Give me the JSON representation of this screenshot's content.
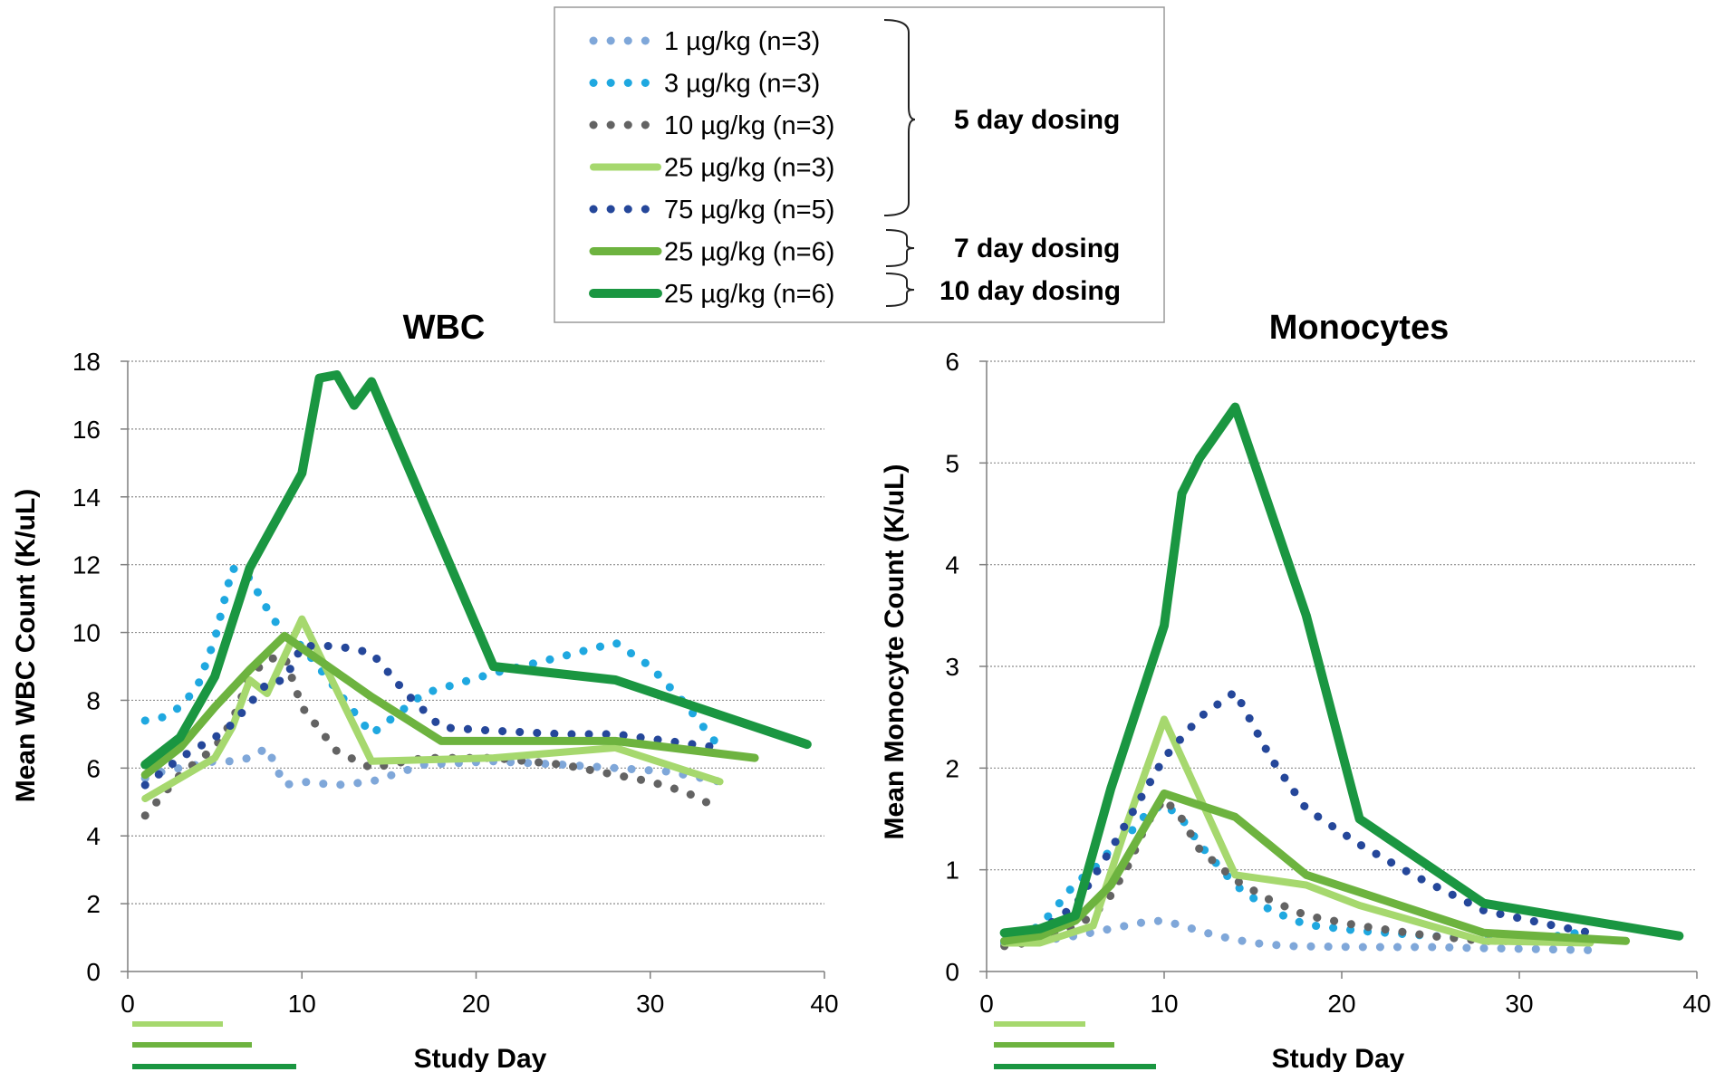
{
  "legend": {
    "entries": [
      {
        "label": "1 µg/kg (n=3)",
        "color": "#7fa7d9",
        "style": "dotted"
      },
      {
        "label": "3 µg/kg (n=3)",
        "color": "#1fa8e0",
        "style": "dotted"
      },
      {
        "label": "10 µg/kg (n=3)",
        "color": "#636363",
        "style": "dotted"
      },
      {
        "label": "25 µg/kg (n=3)",
        "color": "#a6d86e",
        "style": "solid-thin"
      },
      {
        "label": "75 µg/kg (n=5)",
        "color": "#25479a",
        "style": "dotted"
      },
      {
        "label": "25 µg/kg (n=6)",
        "color": "#6db33f",
        "style": "solid-medium"
      },
      {
        "label": "25 µg/kg (n=6)",
        "color": "#1a9641",
        "style": "solid-thick"
      }
    ],
    "groups": [
      "5 day dosing",
      "7 day dosing",
      "10 day dosing"
    ]
  },
  "chart_data": [
    {
      "type": "line",
      "title": "WBC",
      "xlabel": "Study Day",
      "ylabel": "Mean WBC Count (K/uL)",
      "xlim": [
        0,
        40
      ],
      "ylim": [
        0,
        18
      ],
      "xticks": [
        "0",
        "10",
        "20",
        "30",
        "40"
      ],
      "yticks": [
        "0",
        "2",
        "4",
        "6",
        "8",
        "10",
        "12",
        "14",
        "16",
        "18"
      ],
      "grid": true,
      "series": [
        {
          "name": "1 µg/kg (n=3)",
          "x": [
            1,
            2,
            3,
            4,
            5,
            6,
            7,
            8,
            9,
            10,
            12,
            14,
            17,
            21,
            25,
            28,
            31,
            34
          ],
          "y": [
            5.7,
            5.9,
            6.0,
            6.1,
            6.2,
            6.2,
            6.3,
            6.6,
            5.5,
            5.6,
            5.5,
            5.6,
            6.1,
            6.2,
            6.1,
            6.0,
            5.9,
            5.6
          ]
        },
        {
          "name": "3 µg/kg (n=3)",
          "x": [
            1,
            2,
            3,
            4,
            5,
            6,
            7,
            8,
            9,
            10,
            12,
            14,
            17,
            21,
            25,
            28,
            30,
            32,
            34
          ],
          "y": [
            7.4,
            7.5,
            7.8,
            8.4,
            9.8,
            11.9,
            11.6,
            10.7,
            9.9,
            9.6,
            8.3,
            7.0,
            8.2,
            8.8,
            9.3,
            9.7,
            9.0,
            7.9,
            6.6
          ]
        },
        {
          "name": "10 µg/kg (n=3)",
          "x": [
            1,
            2,
            3,
            4,
            5,
            6,
            7,
            8,
            9,
            10,
            12,
            14,
            17,
            21,
            25,
            28,
            30,
            32,
            34
          ],
          "y": [
            4.6,
            5.2,
            5.8,
            6.2,
            6.6,
            7.4,
            8.7,
            9.2,
            9.3,
            7.8,
            6.5,
            6.0,
            6.3,
            6.3,
            6.1,
            5.8,
            5.6,
            5.3,
            4.8
          ]
        },
        {
          "name": "25 µg/kg (n=3)",
          "x": [
            1,
            3,
            5,
            6,
            7,
            8,
            10,
            14,
            21,
            28,
            34
          ],
          "y": [
            5.1,
            5.7,
            6.3,
            7.2,
            8.6,
            8.2,
            10.4,
            6.2,
            6.3,
            6.6,
            5.6
          ]
        },
        {
          "name": "75 µg/kg (n=5)",
          "x": [
            1,
            2,
            3,
            4,
            5,
            6,
            7,
            8,
            9,
            10,
            12,
            14,
            16,
            18,
            21,
            25,
            28,
            31,
            34
          ],
          "y": [
            5.5,
            5.9,
            6.3,
            6.6,
            6.9,
            7.3,
            7.9,
            8.5,
            8.6,
            9.6,
            9.6,
            9.4,
            8.2,
            7.2,
            7.1,
            7.0,
            7.0,
            6.8,
            6.6
          ]
        },
        {
          "name": "25 µg/kg (n=6)",
          "x": [
            1,
            3,
            5,
            7,
            9,
            14,
            18,
            21,
            28,
            36
          ],
          "y": [
            5.8,
            6.6,
            7.8,
            8.9,
            9.9,
            8.1,
            6.8,
            6.8,
            6.8,
            6.3
          ]
        },
        {
          "name": "25 µg/kg (n=6)",
          "x": [
            1,
            3,
            5,
            7,
            10,
            11,
            12,
            13,
            14,
            21,
            28,
            39
          ],
          "y": [
            6.1,
            6.9,
            8.7,
            11.9,
            14.7,
            17.5,
            17.6,
            16.7,
            17.4,
            9.0,
            8.6,
            6.7
          ]
        }
      ]
    },
    {
      "type": "line",
      "title": "Monocytes",
      "xlabel": "Study Day",
      "ylabel": "Mean Monocyte Count (K/uL)",
      "xlim": [
        0,
        40
      ],
      "ylim": [
        0,
        6
      ],
      "xticks": [
        "0",
        "10",
        "20",
        "30",
        "40"
      ],
      "yticks": [
        "0",
        "1",
        "2",
        "3",
        "4",
        "5",
        "6"
      ],
      "grid": true,
      "series": [
        {
          "name": "1 µg/kg (n=3)",
          "x": [
            1,
            3,
            5,
            7,
            9,
            10,
            11,
            13,
            15,
            17,
            21,
            25,
            28,
            31,
            34
          ],
          "y": [
            0.27,
            0.3,
            0.35,
            0.42,
            0.49,
            0.5,
            0.45,
            0.35,
            0.28,
            0.25,
            0.24,
            0.24,
            0.23,
            0.22,
            0.21
          ]
        },
        {
          "name": "3 µg/kg (n=3)",
          "x": [
            1,
            3,
            4,
            5,
            6,
            7,
            8,
            9,
            10,
            11,
            12,
            14,
            16,
            18,
            21,
            25,
            28,
            31,
            34
          ],
          "y": [
            0.28,
            0.45,
            0.65,
            0.87,
            1.0,
            1.2,
            1.35,
            1.55,
            1.65,
            1.5,
            1.25,
            0.85,
            0.6,
            0.46,
            0.4,
            0.35,
            0.32,
            0.32,
            0.4
          ]
        },
        {
          "name": "10 µg/kg (n=3)",
          "x": [
            1,
            3,
            5,
            6,
            7,
            8,
            9,
            10,
            11,
            12,
            14,
            16,
            18,
            21,
            25,
            28,
            31,
            34
          ],
          "y": [
            0.25,
            0.3,
            0.45,
            0.55,
            0.75,
            1.05,
            1.45,
            1.7,
            1.5,
            1.2,
            0.9,
            0.7,
            0.55,
            0.45,
            0.35,
            0.3,
            0.3,
            0.3
          ]
        },
        {
          "name": "25 µg/kg (n=3)",
          "x": [
            1,
            3,
            6,
            8,
            10,
            14,
            18,
            21,
            28,
            34
          ],
          "y": [
            0.28,
            0.28,
            0.45,
            1.5,
            2.48,
            0.95,
            0.85,
            0.65,
            0.3,
            0.28
          ]
        },
        {
          "name": "75 µg/kg (n=5)",
          "x": [
            1,
            3,
            5,
            7,
            9,
            10,
            12,
            14,
            16,
            18,
            21,
            24,
            28,
            32,
            34
          ],
          "y": [
            0.3,
            0.4,
            0.65,
            1.2,
            1.8,
            2.1,
            2.5,
            2.75,
            2.1,
            1.6,
            1.25,
            0.95,
            0.6,
            0.45,
            0.38
          ]
        },
        {
          "name": "25 µg/kg (n=6)",
          "x": [
            1,
            3,
            5,
            7,
            10,
            14,
            18,
            21,
            28,
            36
          ],
          "y": [
            0.3,
            0.35,
            0.5,
            0.85,
            1.75,
            1.52,
            0.95,
            0.78,
            0.38,
            0.3
          ]
        },
        {
          "name": "25 µg/kg (n=6)",
          "x": [
            1,
            3,
            5,
            7,
            10,
            11,
            12,
            14,
            18,
            21,
            28,
            39
          ],
          "y": [
            0.38,
            0.42,
            0.55,
            1.8,
            3.4,
            4.7,
            5.05,
            5.55,
            3.5,
            1.5,
            0.67,
            0.35
          ]
        }
      ]
    }
  ]
}
